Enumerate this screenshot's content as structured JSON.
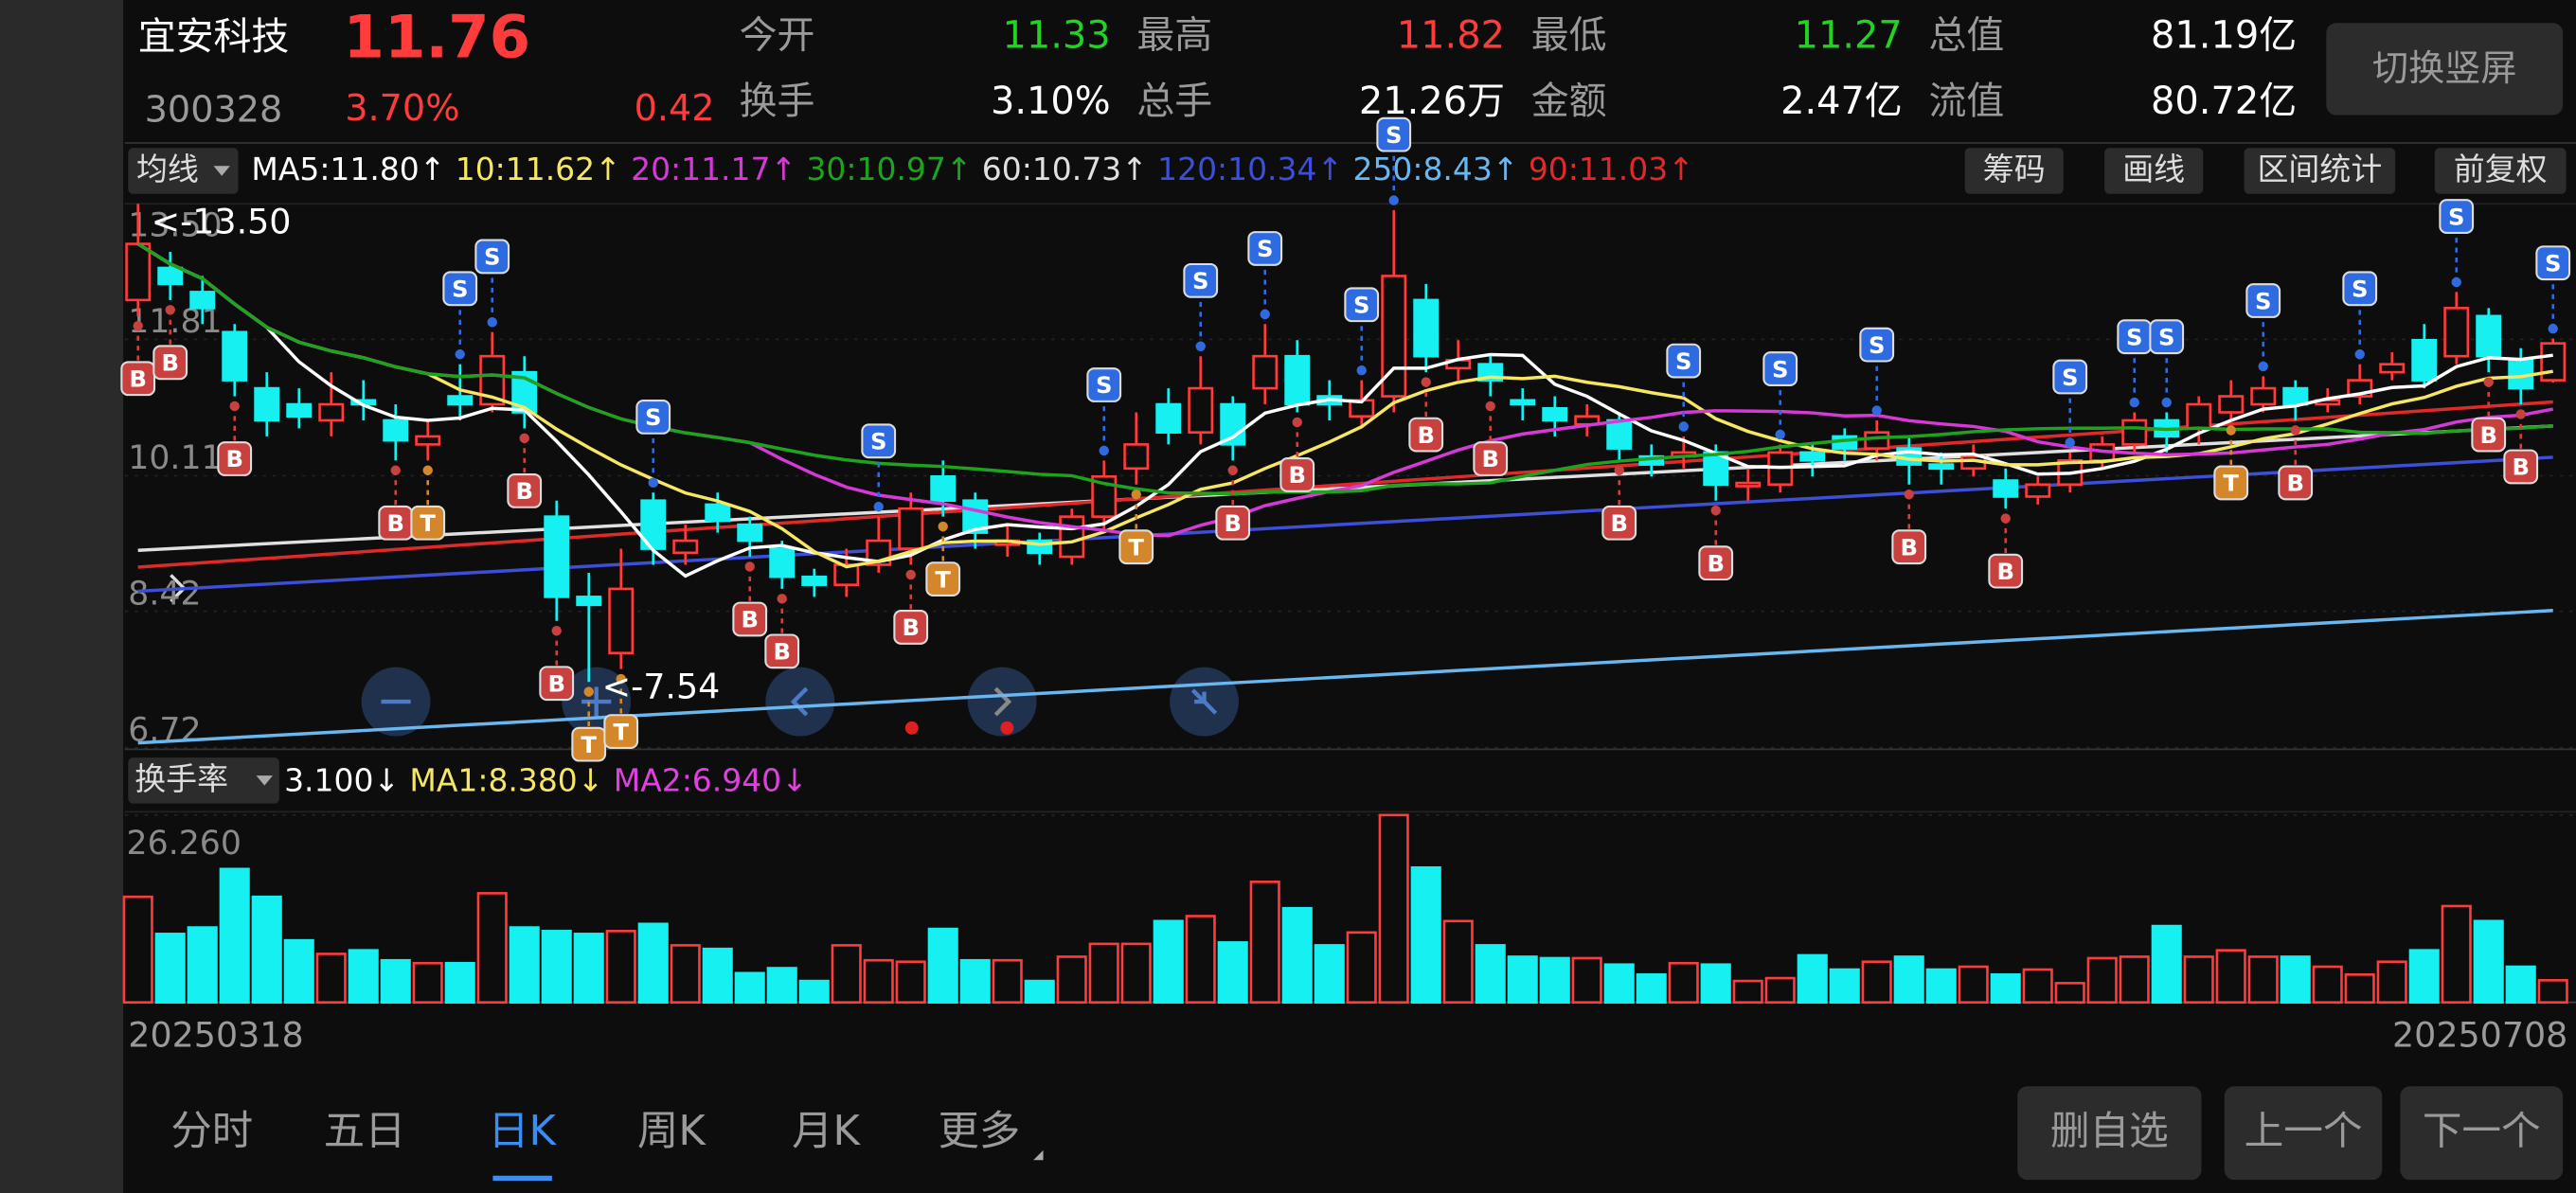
{
  "header": {
    "name": "宜安科技",
    "price": 11.76,
    "code": "300328",
    "change_pct": "3.70%",
    "change": 0.42,
    "stats": [
      {
        "label": "今开",
        "value": 11.33,
        "color": "#22d322"
      },
      {
        "label": "最高",
        "value": 11.82,
        "color": "#ff3b3b"
      },
      {
        "label": "最低",
        "value": 11.27,
        "color": "#22d322"
      },
      {
        "label": "总值",
        "value": "81.19亿",
        "color": "#ffffff"
      },
      {
        "label": "换手",
        "value": "3.10%",
        "color": "#ffffff"
      },
      {
        "label": "总手",
        "value": "21.26万",
        "color": "#ffffff"
      },
      {
        "label": "金额",
        "value": "2.47亿",
        "color": "#ffffff"
      },
      {
        "label": "流值",
        "value": "80.72亿",
        "color": "#ffffff"
      }
    ],
    "button": "切换竖屏"
  },
  "ma_bar": {
    "selector": "均线",
    "items": [
      {
        "label": "MA5:11.80↑",
        "color": "#ffffff",
        "period": 5
      },
      {
        "label": "10:11.62↑",
        "color": "#f5e663",
        "period": 10
      },
      {
        "label": "20:11.17↑",
        "color": "#d63ad6",
        "period": 20
      },
      {
        "label": "30:10.97↑",
        "color": "#1fa31f",
        "period": 30
      },
      {
        "label": "60:10.73↑",
        "color": "#e0e0e0",
        "line": [
          9.18,
          10.73
        ]
      },
      {
        "label": "120:10.34↑",
        "color": "#3d4fd6",
        "line": [
          8.67,
          10.34
        ]
      },
      {
        "label": "250:8.43↑",
        "color": "#6ab7f0",
        "line": [
          6.78,
          8.43
        ]
      },
      {
        "label": "90:11.03↑",
        "color": "#e02a2a",
        "line": [
          8.97,
          11.03
        ]
      }
    ],
    "tools": [
      "筹码",
      "画线",
      "区间统计",
      "前复权"
    ]
  },
  "kline": {
    "type": "candlestick",
    "up_color": "#ff3b3b",
    "down_color": "#16f0f0",
    "ylim": [
      6.72,
      13.5
    ],
    "yticks": [
      {
        "value": 13.5,
        "label": "13.50"
      },
      11.81,
      10.11,
      8.42,
      6.72
    ],
    "x_labels": [
      "20250318",
      "20250708"
    ],
    "open": [
      12.3,
      12.7,
      12.4,
      11.9,
      11.2,
      11.0,
      10.8,
      11.05,
      10.8,
      10.5,
      11.1,
      11.0,
      11.4,
      9.6,
      8.6,
      7.9,
      9.8,
      9.15,
      9.75,
      9.5,
      9.2,
      8.85,
      8.75,
      9.0,
      9.2,
      10.1,
      9.8,
      9.25,
      9.3,
      9.1,
      9.6,
      10.2,
      11.0,
      10.65,
      11.0,
      11.2,
      11.6,
      11.1,
      10.85,
      11.1,
      12.3,
      11.45,
      11.5,
      11.05,
      10.95,
      10.75,
      10.8,
      10.35,
      10.35,
      10.4,
      9.98,
      10.0,
      10.4,
      10.6,
      10.45,
      10.45,
      10.25,
      10.2,
      10.05,
      9.85,
      10.0,
      10.3,
      10.5,
      10.8,
      10.7,
      10.9,
      11.0,
      11.2,
      11.0,
      11.1,
      11.4,
      11.8,
      11.6,
      12.1,
      11.55,
      11.3
    ],
    "high": [
      13.5,
      12.9,
      12.6,
      12.0,
      11.4,
      11.2,
      11.4,
      11.3,
      11.0,
      10.8,
      11.5,
      11.9,
      11.6,
      9.8,
      8.9,
      9.2,
      9.9,
      9.5,
      9.9,
      9.6,
      9.3,
      8.95,
      9.2,
      9.6,
      9.9,
      10.3,
      9.9,
      9.5,
      9.4,
      9.7,
      10.3,
      10.9,
      11.2,
      11.6,
      11.1,
      12.0,
      11.8,
      11.3,
      11.3,
      13.42,
      12.5,
      11.8,
      11.6,
      11.2,
      11.1,
      11.0,
      10.9,
      10.5,
      10.6,
      10.5,
      10.2,
      10.5,
      10.5,
      10.7,
      10.8,
      10.6,
      10.4,
      10.5,
      10.2,
      10.1,
      10.4,
      10.6,
      10.9,
      10.9,
      11.1,
      11.3,
      11.35,
      11.3,
      11.2,
      11.5,
      11.65,
      12.0,
      12.4,
      12.2,
      11.7,
      11.82
    ],
    "low": [
      12.1,
      12.3,
      12.0,
      11.1,
      10.6,
      10.7,
      10.6,
      10.8,
      10.3,
      10.3,
      10.8,
      10.9,
      10.7,
      8.3,
      7.54,
      7.7,
      9.0,
      9.0,
      9.4,
      9.1,
      8.7,
      8.6,
      8.6,
      8.9,
      9.0,
      9.6,
      9.2,
      9.1,
      9.0,
      9.0,
      9.4,
      10.0,
      10.5,
      10.5,
      10.3,
      11.0,
      10.9,
      10.8,
      10.7,
      10.9,
      11.4,
      11.3,
      11.1,
      10.8,
      10.6,
      10.6,
      10.3,
      10.1,
      10.2,
      9.8,
      9.8,
      9.9,
      10.1,
      10.3,
      10.3,
      10.0,
      10.0,
      10.1,
      9.7,
      9.75,
      9.9,
      10.2,
      10.4,
      10.4,
      10.5,
      10.8,
      10.9,
      10.8,
      10.9,
      11.0,
      11.3,
      11.2,
      11.5,
      11.4,
      11.0,
      11.27
    ],
    "close": [
      13.0,
      12.5,
      12.2,
      11.3,
      10.8,
      10.85,
      11.0,
      11.0,
      10.55,
      10.6,
      11.0,
      11.6,
      10.9,
      8.6,
      8.5,
      8.7,
      9.2,
      9.3,
      9.55,
      9.3,
      8.85,
      8.75,
      9.0,
      9.3,
      9.7,
      9.8,
      9.4,
      9.3,
      9.15,
      9.6,
      10.1,
      10.5,
      10.65,
      11.2,
      10.5,
      11.6,
      11.0,
      11.0,
      11.05,
      12.6,
      11.6,
      11.55,
      11.3,
      11.0,
      10.8,
      10.85,
      10.45,
      10.25,
      10.4,
      10.0,
      10.02,
      10.4,
      10.3,
      10.45,
      10.65,
      10.25,
      10.2,
      10.35,
      9.85,
      10.0,
      10.3,
      10.5,
      10.8,
      10.6,
      11.0,
      11.1,
      11.2,
      11.0,
      11.05,
      11.3,
      11.5,
      11.3,
      12.2,
      11.6,
      11.2,
      11.76
    ],
    "annotations": [
      {
        "text": "<-13.50",
        "index": 0,
        "at": "high"
      },
      {
        "text": "<-7.54",
        "index": 14,
        "at": "low"
      }
    ],
    "signals": [
      {
        "index": 0,
        "text": "B"
      },
      {
        "index": 1,
        "text": "B"
      },
      {
        "index": 3,
        "text": "B"
      },
      {
        "index": 8,
        "text": "B"
      },
      {
        "index": 9,
        "text": "T"
      },
      {
        "index": 10,
        "text": "S"
      },
      {
        "index": 11,
        "text": "S"
      },
      {
        "index": 12,
        "text": "B"
      },
      {
        "index": 13,
        "text": "B"
      },
      {
        "index": 14,
        "text": "T"
      },
      {
        "index": 15,
        "text": "T"
      },
      {
        "index": 16,
        "text": "S"
      },
      {
        "index": 19,
        "text": "B"
      },
      {
        "index": 20,
        "text": "B"
      },
      {
        "index": 23,
        "text": "S"
      },
      {
        "index": 24,
        "text": "B"
      },
      {
        "index": 25,
        "text": "T"
      },
      {
        "index": 30,
        "text": "S"
      },
      {
        "index": 31,
        "text": "T"
      },
      {
        "index": 33,
        "text": "S"
      },
      {
        "index": 34,
        "text": "B"
      },
      {
        "index": 35,
        "text": "S"
      },
      {
        "index": 36,
        "text": "B"
      },
      {
        "index": 38,
        "text": "S"
      },
      {
        "index": 39,
        "text": "S"
      },
      {
        "index": 40,
        "text": "B"
      },
      {
        "index": 42,
        "text": "B"
      },
      {
        "index": 46,
        "text": "B"
      },
      {
        "index": 48,
        "text": "S"
      },
      {
        "index": 49,
        "text": "B"
      },
      {
        "index": 51,
        "text": "S"
      },
      {
        "index": 54,
        "text": "S"
      },
      {
        "index": 55,
        "text": "B"
      },
      {
        "index": 58,
        "text": "B"
      },
      {
        "index": 60,
        "text": "S"
      },
      {
        "index": 62,
        "text": "S"
      },
      {
        "index": 63,
        "text": "S"
      },
      {
        "index": 65,
        "text": "T"
      },
      {
        "index": 66,
        "text": "S"
      },
      {
        "index": 67,
        "text": "B"
      },
      {
        "index": 69,
        "text": "S"
      },
      {
        "index": 72,
        "text": "S"
      },
      {
        "index": 73,
        "text": "B"
      },
      {
        "index": 74,
        "text": "B"
      },
      {
        "index": 75,
        "text": "S"
      }
    ]
  },
  "turnover": {
    "selector": "换手率",
    "items": [
      {
        "label": "3.100↓",
        "color": "#ffffff"
      },
      {
        "label": "MA1:8.380↓",
        "color": "#f5e663"
      },
      {
        "label": "MA2:6.940↓",
        "color": "#e040e0"
      }
    ],
    "ylim": [
      0,
      26.26
    ],
    "yticks": [
      {
        "value": 26.26,
        "label": "26.260"
      }
    ],
    "values": [
      14.8,
      9.6,
      10.5,
      18.7,
      14.8,
      8.7,
      6.8,
      7.3,
      5.9,
      5.5,
      5.5,
      15.3,
      10.5,
      10.0,
      9.6,
      10.0,
      11.0,
      8.0,
      7.5,
      4.1,
      4.8,
      3.0,
      8.0,
      5.9,
      5.7,
      10.3,
      5.9,
      5.9,
      3.0,
      6.4,
      8.2,
      8.2,
      11.4,
      12.1,
      8.4,
      16.9,
      13.2,
      8.0,
      9.8,
      26.26,
      18.9,
      11.4,
      8.0,
      6.4,
      6.2,
      6.2,
      5.3,
      3.9,
      5.5,
      5.3,
      3.0,
      3.4,
      6.6,
      4.6,
      5.7,
      6.4,
      4.6,
      5.0,
      3.9,
      4.6,
      2.7,
      6.2,
      6.4,
      10.7,
      6.4,
      7.3,
      6.4,
      6.4,
      5.0,
      3.9,
      5.7,
      7.3,
      13.5,
      11.4,
      5.0,
      3.1
    ]
  },
  "tabs": {
    "items": [
      "分时",
      "五日",
      "日K",
      "周K",
      "月K",
      "更多"
    ],
    "active": 2
  },
  "buttons": [
    "删自选",
    "上一个",
    "下一个"
  ]
}
